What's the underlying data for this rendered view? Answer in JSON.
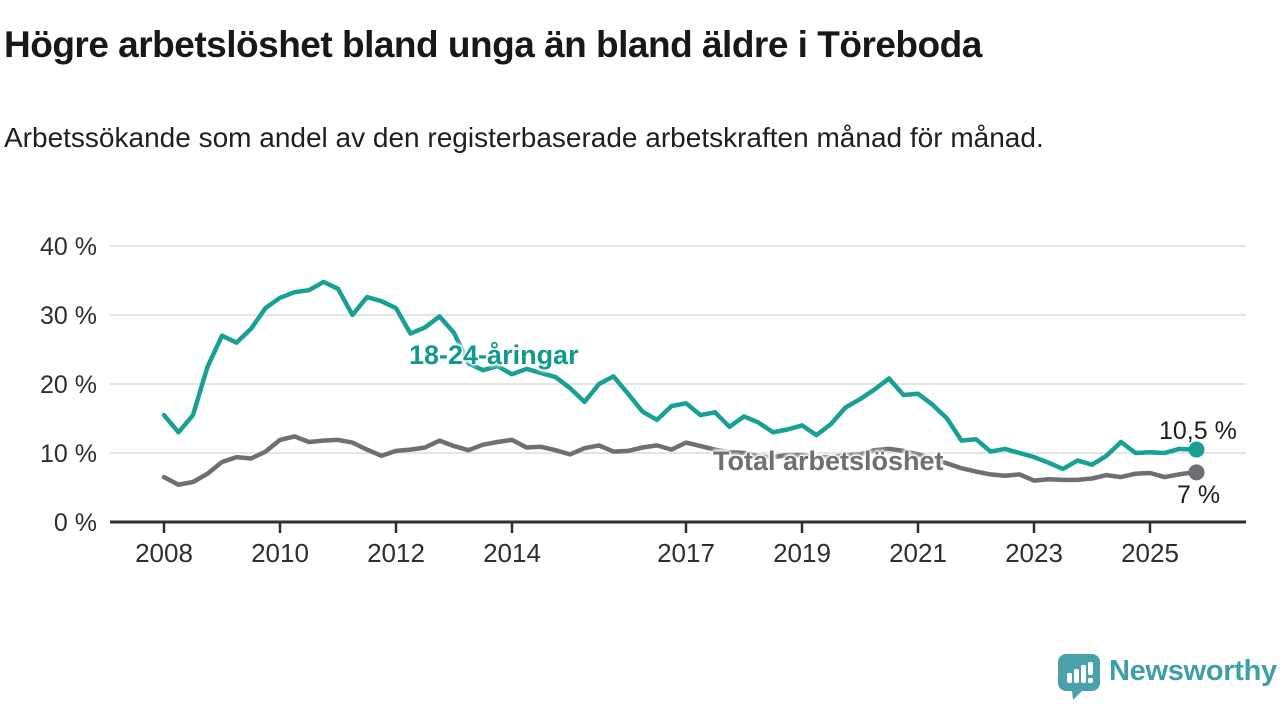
{
  "header": {
    "title": "Högre arbetslöshet bland unga än bland äldre i Töreboda",
    "subtitle": "Arbetssökande som andel av den registerbaserade arbetskraften månad för månad."
  },
  "chart_data": {
    "type": "line",
    "title": "Högre arbetslöshet bland unga än bland äldre i Töreboda",
    "subtitle": "Arbetssökande som andel av den registerbaserade arbetskraften månad för månad.",
    "grid": "horizontal-only",
    "x_axis": {
      "ticks": [
        2008,
        2010,
        2012,
        2014,
        2017,
        2019,
        2021,
        2023,
        2025
      ],
      "labels": [
        "2008",
        "2010",
        "2012",
        "2014",
        "2017",
        "2019",
        "2021",
        "2023",
        "2025"
      ],
      "range": [
        2007.1,
        2026.65
      ]
    },
    "y_axis": {
      "unit": "%",
      "ticks": [
        0,
        10,
        20,
        30,
        40
      ],
      "labels": [
        "0 %",
        "10 %",
        "20 %",
        "30 %",
        "40 %"
      ],
      "range": [
        0,
        40
      ]
    },
    "series": [
      {
        "name": "18-24-åringar",
        "color": "#18a094",
        "end_label": "10,5 %",
        "end_value": 10.5,
        "x_start": 2008.0,
        "x_step": 0.25,
        "values": [
          15.5,
          13.0,
          15.5,
          22.5,
          27.0,
          26.0,
          28.0,
          31.0,
          32.5,
          33.3,
          33.6,
          34.8,
          33.8,
          30.0,
          32.6,
          32.0,
          31.0,
          27.3,
          28.2,
          29.8,
          27.4,
          23.0,
          22.0,
          22.6,
          21.4,
          22.2,
          21.6,
          21.0,
          19.4,
          17.4,
          20.0,
          21.1,
          18.6,
          16.0,
          14.8,
          16.8,
          17.2,
          15.5,
          15.9,
          13.8,
          15.3,
          14.4,
          13.0,
          13.4,
          14.0,
          12.6,
          14.2,
          16.6,
          17.8,
          19.2,
          20.8,
          18.4,
          18.6,
          17.0,
          15.0,
          11.8,
          12.0,
          10.2,
          10.6,
          10.0,
          9.4,
          8.6,
          7.7,
          8.9,
          8.3,
          9.6,
          11.6,
          10.0,
          10.1,
          10.0,
          10.6,
          10.5
        ]
      },
      {
        "name": "Total arbetslöshet",
        "color": "#6e6e73",
        "end_label": "7 %",
        "end_value": 7,
        "x_start": 2008.0,
        "x_step": 0.25,
        "values": [
          6.5,
          5.4,
          5.8,
          7.0,
          8.7,
          9.4,
          9.2,
          10.2,
          11.9,
          12.4,
          11.6,
          11.8,
          11.9,
          11.5,
          10.5,
          9.6,
          10.3,
          10.5,
          10.8,
          11.8,
          11.0,
          10.4,
          11.2,
          11.6,
          11.9,
          10.8,
          10.9,
          10.4,
          9.8,
          10.7,
          11.1,
          10.2,
          10.3,
          10.8,
          11.1,
          10.5,
          11.5,
          11.0,
          10.5,
          10.1,
          10.0,
          9.5,
          9.4,
          9.7,
          9.7,
          9.4,
          9.4,
          9.7,
          9.8,
          10.4,
          10.6,
          10.3,
          9.8,
          9.2,
          8.5,
          7.8,
          7.3,
          6.9,
          6.7,
          6.9,
          6.0,
          6.2,
          6.1,
          6.1,
          6.3,
          6.8,
          6.5,
          7.0,
          7.1,
          6.5,
          6.9,
          7.2
        ]
      }
    ],
    "legend_position": "inline-labels-on-lines"
  },
  "branding": {
    "logo_text": "Newsworthy",
    "logo_color": "#3f9ea8",
    "logo_icon": "speech-bubble-bar-chart-exclamation"
  },
  "colors": {
    "background": "#ffffff",
    "grid": "#dcdcdc",
    "axis": "#2f2f2f",
    "tick_text": "#2e2e2e",
    "title_text": "#181818",
    "youth_series": "#18a094",
    "total_series": "#6e6e73"
  }
}
